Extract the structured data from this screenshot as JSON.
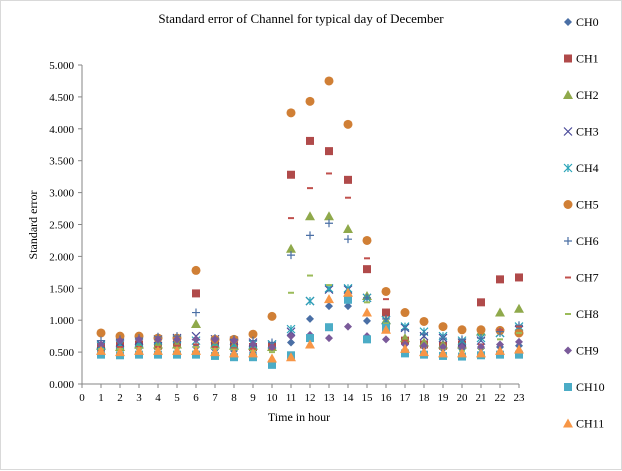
{
  "chart_data": {
    "type": "scatter",
    "title": "Standard error of Channel for typical day of December",
    "xlabel": "Time in hour",
    "ylabel": "Standard error",
    "xlim": [
      0,
      23
    ],
    "ylim": [
      0,
      5
    ],
    "x_ticks": [
      "0",
      "1",
      "2",
      "3",
      "4",
      "5",
      "6",
      "7",
      "8",
      "9",
      "10",
      "11",
      "12",
      "13",
      "14",
      "15",
      "16",
      "17",
      "18",
      "19",
      "20",
      "21",
      "22",
      "23"
    ],
    "y_ticks": [
      "0.000",
      "0.500",
      "1.000",
      "1.500",
      "2.000",
      "2.500",
      "3.000",
      "3.500",
      "4.000",
      "4.500",
      "5.000"
    ],
    "grid": false,
    "legend": "right",
    "x": [
      1,
      2,
      3,
      4,
      5,
      6,
      7,
      8,
      9,
      10,
      11,
      12,
      13,
      14,
      15,
      16,
      17,
      18,
      19,
      20,
      21,
      22,
      23
    ],
    "series": [
      {
        "name": "CH0",
        "marker": "diamond",
        "color": "#4a6fa5",
        "values": [
          0.58,
          0.55,
          0.56,
          0.56,
          0.57,
          0.58,
          0.54,
          0.52,
          0.5,
          0.6,
          0.65,
          1.02,
          1.22,
          1.22,
          0.99,
          0.95,
          0.65,
          0.58,
          0.55,
          0.55,
          0.56,
          0.58,
          0.6
        ]
      },
      {
        "name": "CH1",
        "marker": "square",
        "color": "#b04a4a",
        "values": [
          0.58,
          0.6,
          0.62,
          0.6,
          0.62,
          1.42,
          0.62,
          0.6,
          0.58,
          0.58,
          3.28,
          3.81,
          3.65,
          3.2,
          1.8,
          1.12,
          0.68,
          0.62,
          0.6,
          0.62,
          1.28,
          1.64,
          1.67
        ]
      },
      {
        "name": "CH2",
        "marker": "triangle",
        "color": "#8fa94b",
        "values": [
          0.6,
          0.58,
          0.62,
          0.62,
          0.62,
          0.94,
          0.62,
          0.6,
          0.6,
          0.58,
          2.12,
          2.63,
          2.63,
          2.43,
          1.38,
          1.0,
          0.72,
          0.65,
          0.62,
          0.62,
          0.82,
          1.12,
          1.18
        ]
      },
      {
        "name": "CH3",
        "marker": "x",
        "color": "#4a4a9a",
        "values": [
          0.62,
          0.65,
          0.68,
          0.7,
          0.72,
          0.75,
          0.7,
          0.68,
          0.65,
          0.62,
          0.82,
          1.3,
          1.48,
          1.48,
          1.35,
          1.0,
          0.88,
          0.75,
          0.72,
          0.65,
          0.68,
          0.8,
          0.85
        ]
      },
      {
        "name": "CH4",
        "marker": "star",
        "color": "#2aa4b8",
        "values": [
          0.6,
          0.62,
          0.65,
          0.68,
          0.7,
          0.68,
          0.65,
          0.62,
          0.62,
          0.62,
          0.86,
          1.3,
          1.5,
          1.5,
          1.35,
          1.0,
          0.9,
          0.82,
          0.75,
          0.68,
          0.72,
          0.8,
          0.9
        ]
      },
      {
        "name": "CH5",
        "marker": "circle",
        "color": "#d07f35",
        "values": [
          0.8,
          0.75,
          0.75,
          0.72,
          0.72,
          1.78,
          0.7,
          0.7,
          0.78,
          1.06,
          4.25,
          4.43,
          4.75,
          4.07,
          2.25,
          1.45,
          1.12,
          0.98,
          0.9,
          0.85,
          0.85,
          0.84,
          0.8
        ]
      },
      {
        "name": "CH6",
        "marker": "plus",
        "color": "#4a6fa5",
        "values": [
          0.68,
          0.7,
          0.72,
          0.74,
          0.75,
          1.12,
          0.72,
          0.7,
          0.68,
          0.65,
          2.02,
          2.33,
          2.52,
          2.27,
          1.35,
          1.02,
          0.85,
          0.78,
          0.72,
          0.7,
          0.72,
          0.82,
          0.92
        ]
      },
      {
        "name": "CH7",
        "marker": "dash",
        "color": "#c0504d",
        "values": [
          0.6,
          0.58,
          0.58,
          0.58,
          0.6,
          0.62,
          0.58,
          0.56,
          0.55,
          0.55,
          2.6,
          3.07,
          3.3,
          2.92,
          1.97,
          1.33,
          0.68,
          0.6,
          0.58,
          0.58,
          0.62,
          0.85,
          0.9
        ]
      },
      {
        "name": "CH8",
        "marker": "dash",
        "color": "#9bbb59",
        "values": [
          0.55,
          0.55,
          0.56,
          0.55,
          0.56,
          0.58,
          0.55,
          0.54,
          0.52,
          0.5,
          1.43,
          1.7,
          1.55,
          1.4,
          1.28,
          0.95,
          0.62,
          0.58,
          0.55,
          0.52,
          0.55,
          0.7,
          0.8
        ]
      },
      {
        "name": "CH9",
        "marker": "diamond",
        "color": "#7a5a9a",
        "values": [
          0.62,
          0.68,
          0.7,
          0.7,
          0.7,
          0.7,
          0.7,
          0.68,
          0.62,
          0.58,
          0.75,
          0.77,
          0.72,
          0.9,
          0.75,
          0.7,
          0.62,
          0.6,
          0.58,
          0.58,
          0.58,
          0.62,
          0.66
        ]
      },
      {
        "name": "CH10",
        "marker": "square",
        "color": "#4bacc6",
        "values": [
          0.46,
          0.45,
          0.46,
          0.46,
          0.46,
          0.46,
          0.44,
          0.42,
          0.42,
          0.3,
          0.45,
          0.72,
          0.89,
          1.32,
          0.7,
          0.88,
          0.48,
          0.46,
          0.44,
          0.43,
          0.45,
          0.46,
          0.46
        ]
      },
      {
        "name": "CH11",
        "marker": "triangle",
        "color": "#f79646",
        "values": [
          0.52,
          0.5,
          0.52,
          0.52,
          0.52,
          0.52,
          0.5,
          0.48,
          0.48,
          0.4,
          0.42,
          0.62,
          1.33,
          1.43,
          1.12,
          0.85,
          0.55,
          0.5,
          0.48,
          0.48,
          0.48,
          0.52,
          0.54
        ]
      }
    ]
  }
}
